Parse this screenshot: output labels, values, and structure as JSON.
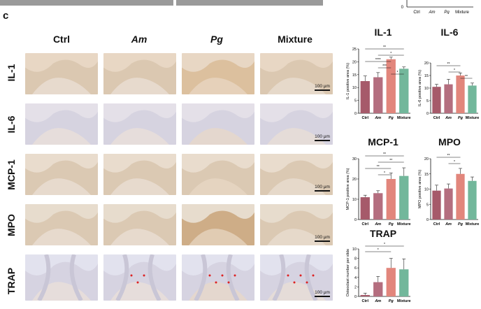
{
  "panel_label": "c",
  "top_chart_fragment": {
    "categories": [
      "Ctrl",
      "Am",
      "Pg",
      "Mixture"
    ],
    "zero_tick": "0"
  },
  "columns": [
    "Ctrl",
    "Am",
    "Pg",
    "Mixture"
  ],
  "rows": [
    "IL-1",
    "IL-6",
    "MCP-1",
    "MPO",
    "TRAP"
  ],
  "scale_bar_label": "100 μm",
  "colors": {
    "Ctrl": "#a65a6a",
    "Am": "#b46e7f",
    "Pg": "#e2867c",
    "Mixture": "#72b79b"
  },
  "chart_data": [
    {
      "type": "bar",
      "title": "IL-1",
      "ylabel": "IL-1 positive area (%)",
      "categories": [
        "Ctrl",
        "Am",
        "Pg",
        "Mixture"
      ],
      "values": [
        12.5,
        14,
        21,
        17.3
      ],
      "errors": [
        2,
        1.8,
        0.8,
        0.7
      ],
      "ylim": [
        0,
        25
      ],
      "yticks": [
        "0",
        "5",
        "10",
        "15",
        "20",
        "25"
      ],
      "significance": [
        {
          "from": 0,
          "to": 3,
          "label": "**"
        },
        {
          "from": 1,
          "to": 3,
          "label": "*"
        },
        {
          "from": 0,
          "to": 2,
          "label": "****"
        },
        {
          "from": 1,
          "to": 2,
          "label": "***"
        },
        {
          "from": 2,
          "to": 3,
          "label": "*"
        }
      ]
    },
    {
      "type": "bar",
      "title": "IL-6",
      "ylabel": "IL-6 positive area (%)",
      "categories": [
        "Ctrl",
        "Am",
        "Pg",
        "Mixture"
      ],
      "values": [
        10.5,
        11.5,
        15,
        11
      ],
      "errors": [
        1,
        2,
        1,
        1
      ],
      "ylim": [
        0,
        20
      ],
      "yticks": [
        "0",
        "5",
        "10",
        "15",
        "20"
      ],
      "significance": [
        {
          "from": 0,
          "to": 2,
          "label": "**"
        },
        {
          "from": 1,
          "to": 2,
          "label": "*"
        },
        {
          "from": 2,
          "to": 3,
          "label": "**"
        }
      ]
    },
    {
      "type": "bar",
      "title": "MCP-1",
      "ylabel": "MCP-1 positive area (%)",
      "categories": [
        "Ctrl",
        "Am",
        "Pg",
        "Mixture"
      ],
      "values": [
        11,
        13,
        20,
        21.5
      ],
      "errors": [
        1,
        1.2,
        3,
        4
      ],
      "ylim": [
        0,
        30
      ],
      "yticks": [
        "0",
        "10",
        "20",
        "30"
      ],
      "significance": [
        {
          "from": 0,
          "to": 3,
          "label": "**"
        },
        {
          "from": 1,
          "to": 3,
          "label": "**"
        },
        {
          "from": 0,
          "to": 2,
          "label": "**"
        },
        {
          "from": 1,
          "to": 2,
          "label": "*"
        }
      ]
    },
    {
      "type": "bar",
      "title": "MPO",
      "ylabel": "MPO positive area (%)",
      "categories": [
        "Ctrl",
        "Am",
        "Pg",
        "Mixture"
      ],
      "values": [
        9.5,
        10.2,
        15,
        12.7
      ],
      "errors": [
        1.8,
        1.5,
        1.8,
        1.3
      ],
      "ylim": [
        0,
        20
      ],
      "yticks": [
        "0",
        "5",
        "10",
        "15",
        "20"
      ],
      "significance": [
        {
          "from": 0,
          "to": 2,
          "label": "**"
        },
        {
          "from": 1,
          "to": 2,
          "label": "*"
        }
      ]
    },
    {
      "type": "bar",
      "title": "TRAP",
      "ylabel": "Osteoclast number per slide",
      "categories": [
        "Ctrl",
        "Am",
        "Pg",
        "Mixture"
      ],
      "values": [
        0.3,
        3,
        6,
        5.7
      ],
      "errors": [
        0.4,
        1.2,
        2,
        2.2
      ],
      "ylim": [
        0,
        10
      ],
      "yticks": [
        "0",
        "2",
        "4",
        "6",
        "8",
        "10"
      ],
      "significance": [
        {
          "from": 0,
          "to": 3,
          "label": "*"
        },
        {
          "from": 0,
          "to": 2,
          "label": "*"
        }
      ]
    }
  ]
}
